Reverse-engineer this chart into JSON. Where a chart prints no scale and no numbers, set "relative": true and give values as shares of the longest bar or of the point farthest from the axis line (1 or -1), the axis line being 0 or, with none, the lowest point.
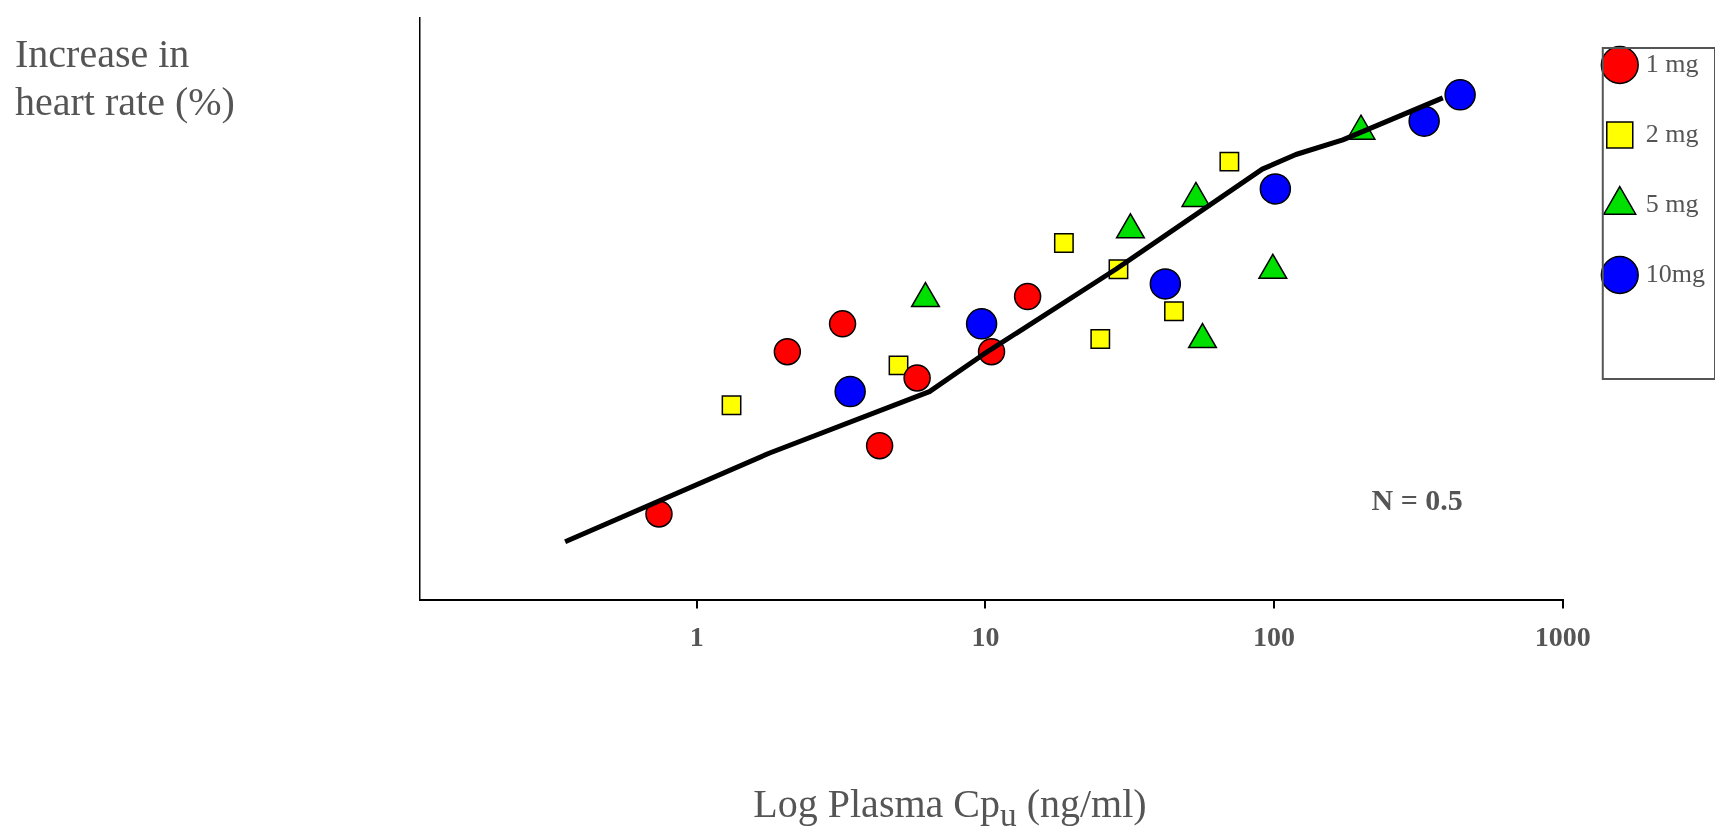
{
  "chart_data": {
    "type": "scatter",
    "relative": true,
    "log": "x",
    "xlabel": "Log Plasma Cp$_{u}$ (ng/ml)",
    "ylabel": "Increase in heart rate (%)",
    "xlim": [
      0.11,
      1000
    ],
    "xticks": [
      1,
      10,
      100,
      1000
    ],
    "grid": false,
    "legend": "right",
    "tick_labels": "x",
    "annotations": [
      "N = 0.5"
    ],
    "series": [
      {
        "name": "1 mg",
        "color": "#ff0000",
        "marker": "circle",
        "x": [
          0.74,
          2.06,
          3.2,
          4.3,
          5.8,
          10.5,
          14
        ],
        "values": [
          0.171,
          0.492,
          0.547,
          0.306,
          0.44,
          0.492,
          0.601
        ]
      },
      {
        "name": "2 mg",
        "color": "#ffff00",
        "marker": "square",
        "x": [
          1.32,
          5.0,
          18.7,
          25,
          28.9,
          45,
          70
        ],
        "values": [
          0.386,
          0.465,
          0.707,
          0.517,
          0.655,
          0.572,
          0.868
        ]
      },
      {
        "name": "5 mg",
        "color": "#00e000",
        "marker": "triangle",
        "x": [
          6.2,
          31.8,
          53.6,
          56.5,
          99,
          200
        ],
        "values": [
          0.597,
          0.733,
          0.795,
          0.516,
          0.653,
          0.928
        ]
      },
      {
        "name": "10mg",
        "color": "#0000ff",
        "marker": "circle",
        "x": [
          3.4,
          9.7,
          42,
          101,
          331,
          441
        ],
        "values": [
          0.413,
          0.547,
          0.626,
          0.814,
          0.948,
          1
        ]
      },
      {
        "type": "line",
        "color": "#000000",
        "marker": "none",
        "line_style": "solid",
        "x": [
          0.35,
          1.78,
          6.4,
          9.8,
          28.3,
          91,
          119,
          173,
          384
        ],
        "values": [
          0.116,
          0.291,
          0.413,
          0.486,
          0.655,
          0.853,
          0.882,
          0.911,
          0.994
        ]
      }
    ]
  }
}
